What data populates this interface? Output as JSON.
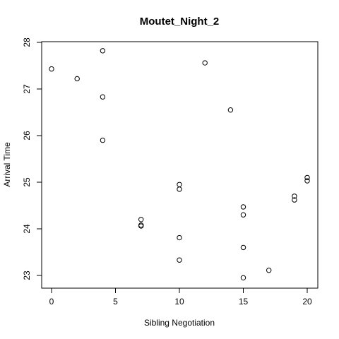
{
  "chart_data": {
    "type": "scatter",
    "title": "Moutet_Night_2",
    "xlabel": "Sibling Negotiation",
    "ylabel": "Arrival Time",
    "xlim": [
      0,
      20
    ],
    "ylim": [
      23,
      28
    ],
    "x_ticks": [
      0,
      5,
      10,
      15,
      20
    ],
    "y_ticks": [
      23,
      24,
      25,
      26,
      27,
      28
    ],
    "grid": false,
    "marker": "open-circle",
    "points": [
      {
        "x": 0,
        "y": 27.43
      },
      {
        "x": 2,
        "y": 27.22
      },
      {
        "x": 4,
        "y": 27.82
      },
      {
        "x": 4,
        "y": 26.83
      },
      {
        "x": 4,
        "y": 25.9
      },
      {
        "x": 7,
        "y": 24.2
      },
      {
        "x": 7,
        "y": 24.08
      },
      {
        "x": 7,
        "y": 24.06
      },
      {
        "x": 10,
        "y": 24.95
      },
      {
        "x": 10,
        "y": 24.85
      },
      {
        "x": 10,
        "y": 23.81
      },
      {
        "x": 10,
        "y": 23.33
      },
      {
        "x": 12,
        "y": 27.56
      },
      {
        "x": 14,
        "y": 26.55
      },
      {
        "x": 15,
        "y": 24.47
      },
      {
        "x": 15,
        "y": 24.3
      },
      {
        "x": 15,
        "y": 23.6
      },
      {
        "x": 15,
        "y": 22.95
      },
      {
        "x": 17,
        "y": 23.11
      },
      {
        "x": 19,
        "y": 24.7
      },
      {
        "x": 19,
        "y": 24.62
      },
      {
        "x": 20,
        "y": 25.1
      },
      {
        "x": 20,
        "y": 25.03
      }
    ]
  }
}
